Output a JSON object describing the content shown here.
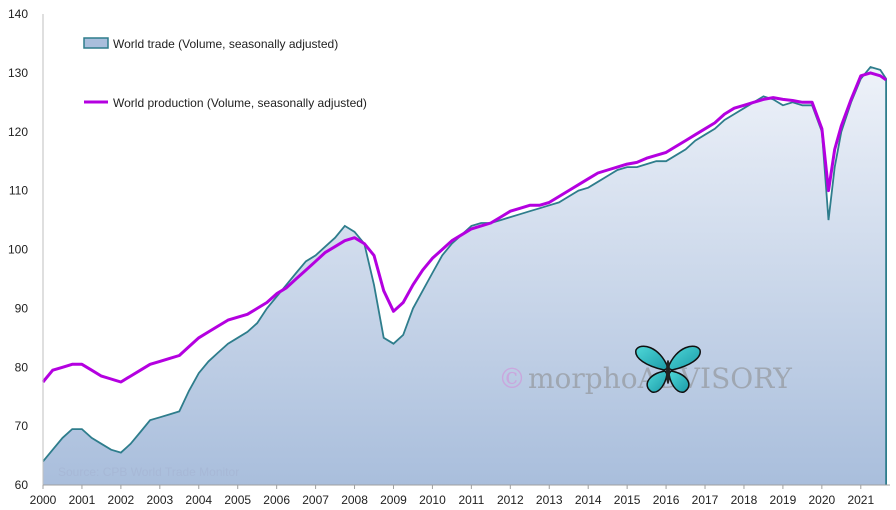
{
  "chart_data": {
    "type": "area",
    "title": "",
    "xlabel": "",
    "ylabel": "",
    "ylim": [
      60,
      140
    ],
    "yticks": [
      60,
      70,
      80,
      90,
      100,
      110,
      120,
      130,
      140
    ],
    "xlim": [
      2000,
      2021.75
    ],
    "xticks": [
      "2000",
      "2001",
      "2002",
      "2003",
      "2004",
      "2005",
      "2006",
      "2007",
      "2008",
      "2009",
      "2010",
      "2011",
      "2012",
      "2013",
      "2014",
      "2015",
      "2016",
      "2017",
      "2018",
      "2019",
      "2020",
      "2021"
    ],
    "grid": false,
    "legend": "top-left",
    "series": [
      {
        "name": "World trade (Volume, seasonally adjusted)",
        "style": "area",
        "color": "#2e7d8c",
        "fill_top": "#eef2f9",
        "fill_bottom": "#a9bedc",
        "x": [
          2000.0,
          2000.25,
          2000.5,
          2000.75,
          2001.0,
          2001.25,
          2001.5,
          2001.75,
          2002.0,
          2002.25,
          2002.5,
          2002.75,
          2003.0,
          2003.25,
          2003.5,
          2003.75,
          2004.0,
          2004.25,
          2004.5,
          2004.75,
          2005.0,
          2005.25,
          2005.5,
          2005.75,
          2006.0,
          2006.25,
          2006.5,
          2006.75,
          2007.0,
          2007.25,
          2007.5,
          2007.75,
          2008.0,
          2008.25,
          2008.5,
          2008.75,
          2009.0,
          2009.25,
          2009.5,
          2009.75,
          2010.0,
          2010.25,
          2010.5,
          2010.75,
          2011.0,
          2011.25,
          2011.5,
          2011.75,
          2012.0,
          2012.25,
          2012.5,
          2012.75,
          2013.0,
          2013.25,
          2013.5,
          2013.75,
          2014.0,
          2014.25,
          2014.5,
          2014.75,
          2015.0,
          2015.25,
          2015.5,
          2015.75,
          2016.0,
          2016.25,
          2016.5,
          2016.75,
          2017.0,
          2017.25,
          2017.5,
          2017.75,
          2018.0,
          2018.25,
          2018.5,
          2018.75,
          2019.0,
          2019.25,
          2019.5,
          2019.75,
          2020.0,
          2020.17,
          2020.33,
          2020.5,
          2020.75,
          2021.0,
          2021.25,
          2021.5,
          2021.65
        ],
        "values": [
          64,
          66,
          68,
          69.5,
          69.5,
          68,
          67,
          66,
          65.5,
          67,
          69,
          71,
          71.5,
          72,
          72.5,
          76,
          79,
          81,
          82.5,
          84,
          85,
          86,
          87.5,
          90,
          92,
          94,
          96,
          98,
          99,
          100.5,
          102,
          104,
          103,
          101,
          94,
          85,
          84,
          85.5,
          90,
          93,
          96,
          99,
          101,
          102.5,
          104,
          104.5,
          104.5,
          105,
          105.5,
          106,
          106.5,
          107,
          107.5,
          108,
          109,
          110,
          110.5,
          111.5,
          112.5,
          113.5,
          114,
          114,
          114.5,
          115,
          115,
          116,
          117,
          118.5,
          119.5,
          120.5,
          122,
          123,
          124,
          125,
          126,
          125.5,
          124.5,
          125,
          124.5,
          124.5,
          120,
          105,
          114,
          120,
          125,
          129,
          131,
          130.5,
          129
        ]
      },
      {
        "name": "World production (Volume, seasonally adjusted)",
        "style": "line",
        "color": "#b400e0",
        "x": [
          2000.0,
          2000.25,
          2000.5,
          2000.75,
          2001.0,
          2001.25,
          2001.5,
          2001.75,
          2002.0,
          2002.25,
          2002.5,
          2002.75,
          2003.0,
          2003.25,
          2003.5,
          2003.75,
          2004.0,
          2004.25,
          2004.5,
          2004.75,
          2005.0,
          2005.25,
          2005.5,
          2005.75,
          2006.0,
          2006.25,
          2006.5,
          2006.75,
          2007.0,
          2007.25,
          2007.5,
          2007.75,
          2008.0,
          2008.25,
          2008.5,
          2008.75,
          2009.0,
          2009.25,
          2009.5,
          2009.75,
          2010.0,
          2010.25,
          2010.5,
          2010.75,
          2011.0,
          2011.25,
          2011.5,
          2011.75,
          2012.0,
          2012.25,
          2012.5,
          2012.75,
          2013.0,
          2013.25,
          2013.5,
          2013.75,
          2014.0,
          2014.25,
          2014.5,
          2014.75,
          2015.0,
          2015.25,
          2015.5,
          2015.75,
          2016.0,
          2016.25,
          2016.5,
          2016.75,
          2017.0,
          2017.25,
          2017.5,
          2017.75,
          2018.0,
          2018.25,
          2018.5,
          2018.75,
          2019.0,
          2019.25,
          2019.5,
          2019.75,
          2020.0,
          2020.17,
          2020.33,
          2020.5,
          2020.75,
          2021.0,
          2021.25,
          2021.5,
          2021.65
        ],
        "values": [
          77.5,
          79.5,
          80,
          80.5,
          80.5,
          79.5,
          78.5,
          78,
          77.5,
          78.5,
          79.5,
          80.5,
          81,
          81.5,
          82,
          83.5,
          85,
          86,
          87,
          88,
          88.5,
          89,
          90,
          91,
          92.5,
          93.5,
          95,
          96.5,
          98,
          99.5,
          100.5,
          101.5,
          102,
          101,
          99,
          93,
          89.5,
          91,
          94,
          96.5,
          98.5,
          100,
          101.5,
          102.5,
          103.5,
          104,
          104.5,
          105.5,
          106.5,
          107,
          107.5,
          107.5,
          108,
          109,
          110,
          111,
          112,
          113,
          113.5,
          114,
          114.5,
          114.8,
          115.5,
          116,
          116.5,
          117.5,
          118.5,
          119.5,
          120.5,
          121.5,
          123,
          124,
          124.5,
          125,
          125.5,
          125.8,
          125.5,
          125.3,
          125,
          125,
          120.5,
          110,
          117,
          121,
          125.5,
          129.5,
          130,
          129.5,
          128.8
        ]
      }
    ],
    "annotations": [
      "Source: CPB World Trade Monitor"
    ],
    "watermark": {
      "text": "morphoADVISORY",
      "symbol": "©"
    }
  }
}
